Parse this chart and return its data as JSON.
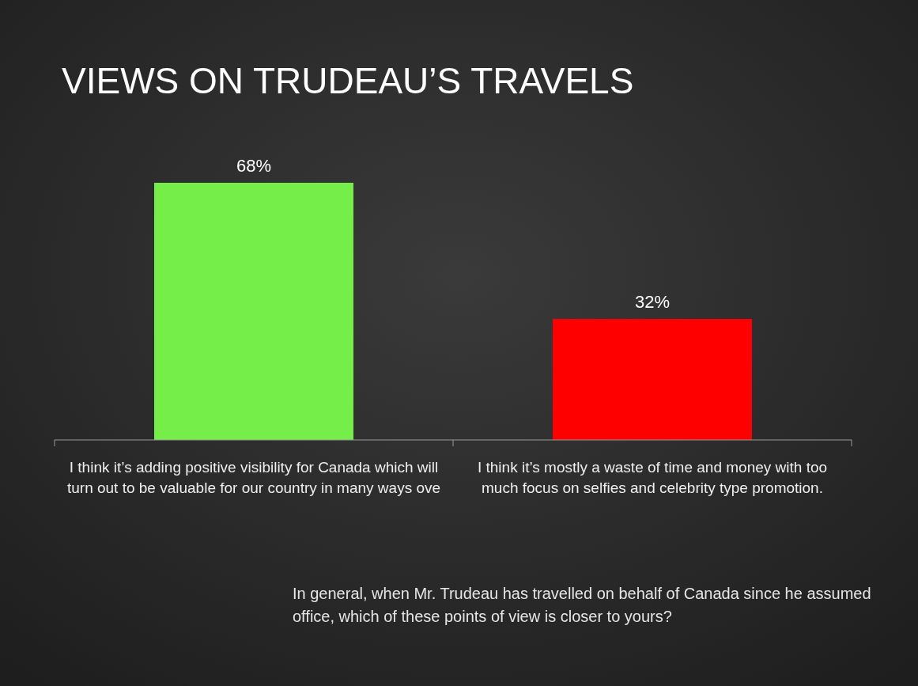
{
  "chart_data": {
    "type": "bar",
    "title": "VIEWS ON TRUDEAU’S TRAVELS",
    "categories": [
      "I think it’s adding positive visibility for Canada which will turn out to be valuable for our country in many ways ove",
      "I think it’s mostly a waste of time and money with too much focus on selfies and celebrity type promotion."
    ],
    "values": [
      68,
      32
    ],
    "colors": [
      "#76ee4a",
      "#ff0000"
    ],
    "value_labels": [
      "68%",
      "32%"
    ],
    "annotations": [
      "In general, when Mr. Trudeau has travelled on behalf of Canada since he assumed office, which of these points of view is closer to yours?"
    ]
  }
}
